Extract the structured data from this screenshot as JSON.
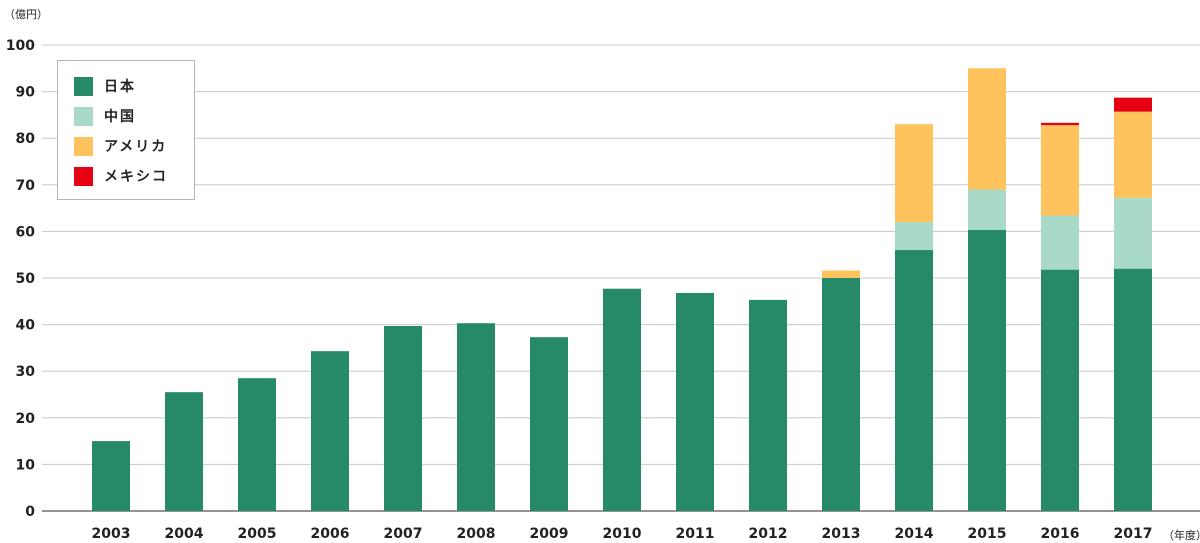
{
  "chart_data": {
    "type": "bar",
    "stacked": true,
    "y_unit_label": "（億円）",
    "x_unit_label": "（年度）",
    "ylim": [
      0,
      100
    ],
    "yticks": [
      0,
      10,
      20,
      30,
      40,
      50,
      60,
      70,
      80,
      90,
      100
    ],
    "grid": true,
    "legend_position": "top-left",
    "categories": [
      "2003",
      "2004",
      "2005",
      "2006",
      "2007",
      "2008",
      "2009",
      "2010",
      "2011",
      "2012",
      "2013",
      "2014",
      "2015",
      "2016",
      "2017"
    ],
    "series": [
      {
        "name": "日本",
        "color": "#268967",
        "values": [
          15,
          25.5,
          28.5,
          34.3,
          39.7,
          40.3,
          37.3,
          47.7,
          46.8,
          45.3,
          50,
          56,
          60.3,
          51.8,
          52
        ]
      },
      {
        "name": "中国",
        "color": "#a9dac8",
        "values": [
          0,
          0,
          0,
          0,
          0,
          0,
          0,
          0,
          0,
          0,
          0,
          6,
          8.7,
          11.6,
          15.2
        ]
      },
      {
        "name": "アメリカ",
        "color": "#ffc35e",
        "values": [
          0,
          0,
          0,
          0,
          0,
          0,
          0,
          0,
          0,
          0,
          1.6,
          21,
          26,
          19.4,
          18.5
        ]
      },
      {
        "name": "メキシコ",
        "color": "#e50012",
        "values": [
          0,
          0,
          0,
          0,
          0,
          0,
          0,
          0,
          0,
          0,
          0,
          0,
          0,
          0.5,
          3
        ]
      }
    ]
  }
}
